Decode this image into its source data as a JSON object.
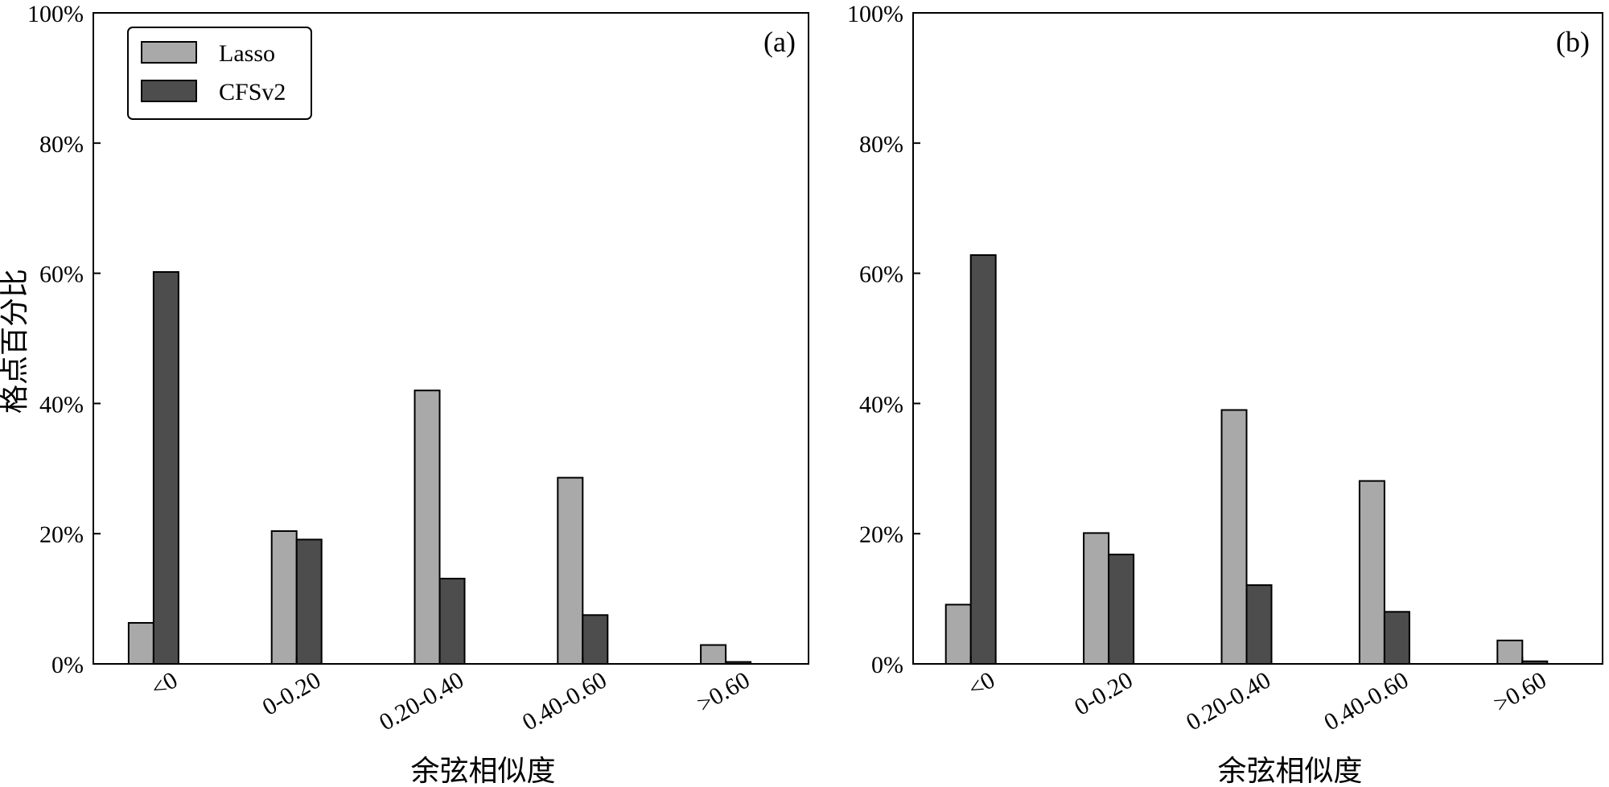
{
  "figure": {
    "ylabel": "格点百分比",
    "tick_format_suffix": "%"
  },
  "chart_data": [
    {
      "type": "bar",
      "panel_label": "(a)",
      "categories": [
        "<0",
        "0-0.20",
        "0.20-0.40",
        "0.40-0.60",
        ">0.60"
      ],
      "series": [
        {
          "name": "Lasso",
          "color": "#a9a9a9",
          "values": [
            6.3,
            20.4,
            42.0,
            28.6,
            2.9
          ]
        },
        {
          "name": "CFSv2",
          "color": "#4d4d4d",
          "values": [
            60.2,
            19.1,
            13.1,
            7.5,
            0.3
          ]
        }
      ],
      "xlabel": "余弦相似度",
      "ylabel": "格点百分比",
      "ylim": [
        0,
        100
      ],
      "yticks": [
        0,
        20,
        40,
        60,
        80,
        100
      ],
      "legend": {
        "show": true,
        "placement": "top-left"
      },
      "grid": false
    },
    {
      "type": "bar",
      "panel_label": "(b)",
      "categories": [
        "<0",
        "0-0.20",
        "0.20-0.40",
        "0.40-0.60",
        ">0.60"
      ],
      "series": [
        {
          "name": "Lasso",
          "color": "#a9a9a9",
          "values": [
            9.1,
            20.1,
            39.0,
            28.1,
            3.6
          ]
        },
        {
          "name": "CFSv2",
          "color": "#4d4d4d",
          "values": [
            62.8,
            16.8,
            12.1,
            8.0,
            0.4
          ]
        }
      ],
      "xlabel": "余弦相似度",
      "ylabel": "",
      "ylim": [
        0,
        100
      ],
      "yticks": [
        0,
        20,
        40,
        60,
        80,
        100
      ],
      "legend": {
        "show": false,
        "placement": "none"
      },
      "grid": false
    }
  ]
}
